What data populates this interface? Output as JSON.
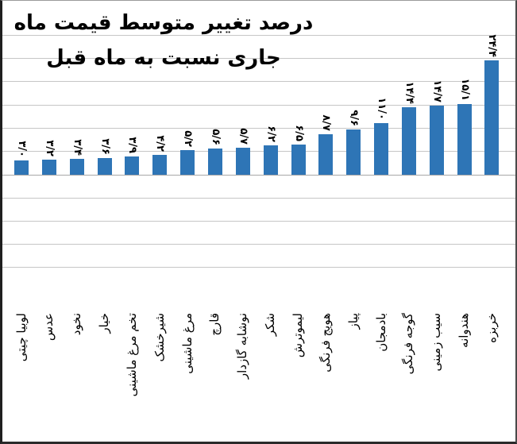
{
  "title": {
    "line1": "درصد تغییر متوسط قیمت ماه",
    "line2": "جاری نسبت به ماه قبل"
  },
  "colors": {
    "bar": "#2E75B6",
    "gridline": "#C6C6C6",
    "baseline": "#A8A8A8",
    "text": "#000000",
    "background": "#FFFFFF"
  },
  "chart_data": {
    "type": "bar",
    "title": "درصد تغییر متوسط قیمت ماه جاری نسبت به ماه قبل",
    "categories": [
      "لوبیا چیتی",
      "عدس",
      "نخود",
      "خیار",
      "تخم مرغ ماشینی",
      "شیرخشک",
      "مرغ ماشینی",
      "قارچ",
      "نوشابه گازدار",
      "شکر",
      "لیموترش",
      "هویج فرنگی",
      "پیاز",
      "بادمجان",
      "گوجه فرنگی",
      "سیب زمینی",
      "هندوانه",
      "خربزه"
    ],
    "values": [
      3.0,
      3.2,
      3.4,
      3.6,
      3.9,
      4.2,
      5.2,
      5.6,
      5.7,
      6.2,
      6.5,
      8.7,
      9.6,
      11.0,
      14.4,
      14.7,
      15.1,
      24.4
    ],
    "value_labels": [
      "۳/۰",
      "۳/۲",
      "۳/۴",
      "۳/۶",
      "۳/۹",
      "۴/۲",
      "۵/۲",
      "۵/۶",
      "۵/۷",
      "۶/۲",
      "۶/۵",
      "۸/۷",
      "۹/۶",
      "۱۱/۰",
      "۱۴/۴",
      "۱۴/۷",
      "۱۵/۱",
      "۲۴/۴"
    ],
    "xlabel": "",
    "ylabel": "",
    "ylim": [
      0,
      25
    ],
    "grid": "horizontal",
    "legend": "none",
    "value_label_rotation_deg": 90,
    "category_label_rotation_deg": -90
  }
}
